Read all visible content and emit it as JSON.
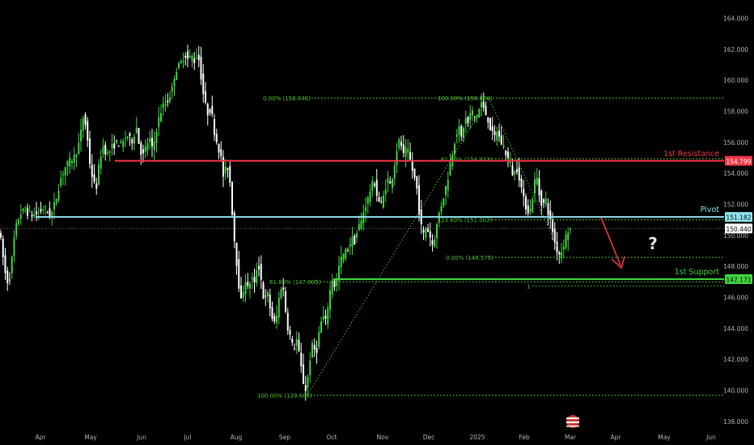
{
  "chart_data": {
    "type": "candlestick",
    "instrument_hint": "",
    "ylim": [
      137.5,
      164.5
    ],
    "y_ticks": [
      "138.000",
      "140.000",
      "142.000",
      "144.000",
      "146.000",
      "148.000",
      "150.000",
      "152.000",
      "154.000",
      "156.000",
      "158.000",
      "160.000",
      "162.000",
      "164.000"
    ],
    "x_ticks": [
      "Apr",
      "May",
      "Jun",
      "Jul",
      "Aug",
      "Sep",
      "Oct",
      "Nov",
      "Dec",
      "2025",
      "Feb",
      "Mar",
      "Apr",
      "May",
      "Jun"
    ],
    "current_price": "150.440",
    "price_path": [
      [
        0,
        150.6
      ],
      [
        4,
        149.0
      ],
      [
        8,
        147.5
      ],
      [
        12,
        146.8
      ],
      [
        16,
        148.4
      ],
      [
        20,
        150.3
      ],
      [
        26,
        151.4
      ],
      [
        32,
        151.6
      ],
      [
        40,
        151.3
      ],
      [
        48,
        151.4
      ],
      [
        56,
        151.8
      ],
      [
        64,
        151.2
      ],
      [
        70,
        152.2
      ],
      [
        76,
        153.6
      ],
      [
        82,
        154.4
      ],
      [
        88,
        154.8
      ],
      [
        94,
        155.1
      ],
      [
        100,
        156.1
      ],
      [
        104,
        157.6
      ],
      [
        108,
        157.0
      ],
      [
        112,
        154.8
      ],
      [
        116,
        153.6
      ],
      [
        120,
        152.9
      ],
      [
        124,
        154.6
      ],
      [
        128,
        155.8
      ],
      [
        134,
        155.2
      ],
      [
        140,
        155.7
      ],
      [
        146,
        156.0
      ],
      [
        152,
        155.8
      ],
      [
        158,
        156.5
      ],
      [
        164,
        156.0
      ],
      [
        170,
        157.0
      ],
      [
        174,
        155.6
      ],
      [
        178,
        155.1
      ],
      [
        182,
        155.7
      ],
      [
        186,
        156.3
      ],
      [
        190,
        155.4
      ],
      [
        196,
        157.2
      ],
      [
        202,
        158.3
      ],
      [
        208,
        158.6
      ],
      [
        214,
        159.4
      ],
      [
        218,
        160.6
      ],
      [
        224,
        161.0
      ],
      [
        230,
        161.7
      ],
      [
        234,
        161.3
      ],
      [
        238,
        161.6
      ],
      [
        242,
        161.2
      ],
      [
        246,
        161.8
      ],
      [
        250,
        160.2
      ],
      [
        254,
        158.6
      ],
      [
        258,
        157.9
      ],
      [
        262,
        158.2
      ],
      [
        266,
        156.8
      ],
      [
        270,
        155.9
      ],
      [
        274,
        155.2
      ],
      [
        278,
        153.6
      ],
      [
        282,
        154.7
      ],
      [
        286,
        153.3
      ],
      [
        290,
        150.3
      ],
      [
        294,
        148.2
      ],
      [
        297,
        146.6
      ],
      [
        300,
        145.5
      ],
      [
        304,
        147.3
      ],
      [
        308,
        146.5
      ],
      [
        312,
        147.3
      ],
      [
        316,
        146.8
      ],
      [
        320,
        148.4
      ],
      [
        324,
        147.2
      ],
      [
        328,
        145.6
      ],
      [
        332,
        146.3
      ],
      [
        336,
        145.1
      ],
      [
        340,
        144.2
      ],
      [
        344,
        144.9
      ],
      [
        348,
        146.8
      ],
      [
        352,
        146.4
      ],
      [
        356,
        144.3
      ],
      [
        360,
        143.5
      ],
      [
        364,
        142.6
      ],
      [
        368,
        143.3
      ],
      [
        372,
        142.0
      ],
      [
        376,
        140.6
      ],
      [
        380,
        139.9
      ],
      [
        384,
        141.9
      ],
      [
        388,
        143.0
      ],
      [
        392,
        142.3
      ],
      [
        396,
        143.8
      ],
      [
        400,
        144.8
      ],
      [
        404,
        144.4
      ],
      [
        408,
        146.0
      ],
      [
        412,
        147.2
      ],
      [
        416,
        146.6
      ],
      [
        420,
        147.9
      ],
      [
        424,
        148.6
      ],
      [
        428,
        148.9
      ],
      [
        432,
        149.2
      ],
      [
        436,
        149.8
      ],
      [
        440,
        149.6
      ],
      [
        444,
        150.5
      ],
      [
        448,
        150.9
      ],
      [
        452,
        151.8
      ],
      [
        456,
        152.3
      ],
      [
        460,
        153.1
      ],
      [
        464,
        153.5
      ],
      [
        468,
        152.4
      ],
      [
        472,
        151.9
      ],
      [
        476,
        152.6
      ],
      [
        480,
        153.7
      ],
      [
        484,
        153.2
      ],
      [
        488,
        154.3
      ],
      [
        492,
        155.6
      ],
      [
        496,
        156.2
      ],
      [
        500,
        155.1
      ],
      [
        504,
        155.6
      ],
      [
        508,
        154.9
      ],
      [
        512,
        154.0
      ],
      [
        516,
        153.3
      ],
      [
        520,
        151.3
      ],
      [
        524,
        149.9
      ],
      [
        528,
        150.6
      ],
      [
        532,
        150.1
      ],
      [
        536,
        149.4
      ],
      [
        540,
        150.2
      ],
      [
        544,
        151.4
      ],
      [
        548,
        152.2
      ],
      [
        552,
        153.0
      ],
      [
        556,
        154.0
      ],
      [
        560,
        155.2
      ],
      [
        564,
        156.3
      ],
      [
        568,
        157.0
      ],
      [
        572,
        156.2
      ],
      [
        576,
        157.6
      ],
      [
        580,
        157.2
      ],
      [
        584,
        158.1
      ],
      [
        588,
        157.6
      ],
      [
        592,
        157.8
      ],
      [
        596,
        158.6
      ],
      [
        600,
        158.0
      ],
      [
        604,
        157.6
      ],
      [
        608,
        156.8
      ],
      [
        612,
        156.2
      ],
      [
        616,
        156.8
      ],
      [
        620,
        156.0
      ],
      [
        624,
        155.7
      ],
      [
        628,
        155.1
      ],
      [
        632,
        154.6
      ],
      [
        636,
        153.8
      ],
      [
        640,
        154.4
      ],
      [
        644,
        153.6
      ],
      [
        648,
        152.4
      ],
      [
        652,
        151.8
      ],
      [
        656,
        151.4
      ],
      [
        660,
        152.6
      ],
      [
        664,
        154.1
      ],
      [
        668,
        152.6
      ],
      [
        672,
        151.9
      ],
      [
        676,
        152.3
      ],
      [
        680,
        151.2
      ],
      [
        684,
        150.4
      ],
      [
        688,
        149.3
      ],
      [
        692,
        148.8
      ],
      [
        695,
        148.9
      ],
      [
        699,
        149.6
      ],
      [
        703,
        150.3
      ],
      [
        705,
        150.4
      ]
    ],
    "levels": [
      {
        "name": "1st Resistance",
        "value": 154.799,
        "label": "154.799",
        "color": "#f23645"
      },
      {
        "name": "Pivot",
        "value": 151.182,
        "label": "151.182",
        "color": "#8fe3f0"
      },
      {
        "name": "1st Support",
        "value": 147.171,
        "label": "147.171",
        "color": "#3fd63f"
      }
    ],
    "fib_upper": [
      {
        "text": "0.00% (158.846)",
        "value": 158.846
      },
      {
        "text": "100.00% (158.860)",
        "value": 158.86
      },
      {
        "text": "61.80% (154.931)",
        "value": 154.931
      },
      {
        "text": "23.60% (151.002)",
        "value": 151.002
      },
      {
        "text": "0.00% (148.575)",
        "value": 148.575
      }
    ],
    "fib_lower": [
      {
        "text": "100.00% (139.686)",
        "value": 139.686
      },
      {
        "text": "61.80% (147.005)",
        "value": 147.005
      }
    ],
    "fib_marker": "1",
    "question_mark": "?",
    "colors": {
      "up": "#ffffff",
      "down": "#ffffff",
      "fib": "#4dc92f",
      "support": "#3fd63f",
      "resistance": "#f23645",
      "pivot": "#8fe3f0",
      "arrow": "#f23645",
      "axis_text": "#b2b5be"
    }
  }
}
